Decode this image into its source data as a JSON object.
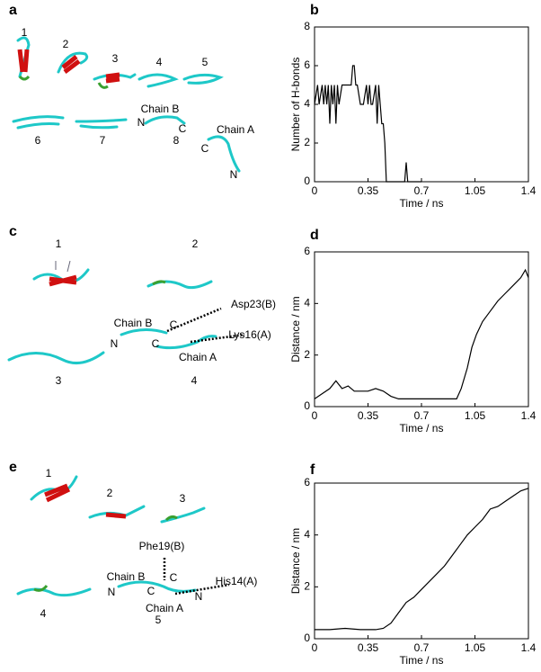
{
  "panel_letters": [
    "a",
    "b",
    "c",
    "d",
    "e",
    "f"
  ],
  "structure_labels": [
    "1",
    "2",
    "3",
    "4",
    "5",
    "6",
    "7",
    "8",
    "Chain B",
    "C",
    "C",
    "Chain A",
    "N",
    "N",
    "1",
    "2",
    "3",
    "4",
    "Chain B",
    "C",
    "C",
    "Chain A",
    "N",
    "Asp23(B)",
    "Lys16(A)",
    "1",
    "2",
    "3",
    "4",
    "5",
    "Phe19(B)",
    "Chain B",
    "C",
    "C",
    "N",
    "His14(A)",
    "N",
    "Chain A"
  ],
  "chart_data": [
    {
      "type": "line",
      "xlabel": "Time / ns",
      "ylabel": "Number of H-bonds",
      "color": "#000000",
      "x": [
        0,
        0.02,
        0.03,
        0.05,
        0.06,
        0.07,
        0.08,
        0.09,
        0.1,
        0.11,
        0.12,
        0.13,
        0.14,
        0.15,
        0.16,
        0.18,
        0.2,
        0.22,
        0.24,
        0.25,
        0.26,
        0.27,
        0.28,
        0.3,
        0.32,
        0.34,
        0.35,
        0.36,
        0.37,
        0.38,
        0.4,
        0.41,
        0.42,
        0.43,
        0.44,
        0.45,
        0.46,
        0.47,
        0.55,
        0.59,
        0.6,
        0.61,
        0.7
      ],
      "values": [
        4,
        5,
        4,
        5,
        4,
        5,
        4,
        5,
        3,
        5,
        4,
        5,
        3,
        5,
        4,
        5,
        5,
        5,
        5,
        6,
        6,
        5,
        5,
        4,
        4,
        5,
        4,
        5,
        4,
        4,
        5,
        3,
        5,
        4,
        3,
        3,
        2,
        0,
        0,
        0,
        1,
        0,
        0
      ],
      "xlim": [
        0,
        1.4
      ],
      "ylim": [
        0,
        8
      ],
      "xticks": [
        0,
        0.35,
        0.7,
        1.05,
        1.4
      ],
      "yticks": [
        0,
        2,
        4,
        6,
        8
      ]
    },
    {
      "type": "line",
      "xlabel": "Time / ns",
      "ylabel": "Distance / nm",
      "color": "#000000",
      "x": [
        0,
        0.05,
        0.1,
        0.14,
        0.18,
        0.22,
        0.26,
        0.3,
        0.35,
        0.4,
        0.45,
        0.5,
        0.55,
        0.6,
        0.65,
        0.7,
        0.75,
        0.8,
        0.85,
        0.9,
        0.93,
        0.96,
        1.0,
        1.03,
        1.06,
        1.1,
        1.15,
        1.2,
        1.25,
        1.3,
        1.35,
        1.38,
        1.4
      ],
      "values": [
        0.3,
        0.5,
        0.7,
        1.0,
        0.7,
        0.8,
        0.6,
        0.6,
        0.6,
        0.7,
        0.6,
        0.4,
        0.3,
        0.3,
        0.3,
        0.3,
        0.3,
        0.3,
        0.3,
        0.3,
        0.3,
        0.7,
        1.5,
        2.3,
        2.8,
        3.3,
        3.7,
        4.1,
        4.4,
        4.7,
        5.0,
        5.3,
        5.0
      ],
      "xlim": [
        0,
        1.4
      ],
      "ylim": [
        0,
        6
      ],
      "xticks": [
        0,
        0.35,
        0.7,
        1.05,
        1.4
      ],
      "yticks": [
        0,
        2,
        4,
        6
      ]
    },
    {
      "type": "line",
      "xlabel": "Time / ns",
      "ylabel": "Distance / nm",
      "color": "#000000",
      "x": [
        0,
        0.1,
        0.2,
        0.3,
        0.4,
        0.45,
        0.5,
        0.55,
        0.6,
        0.65,
        0.7,
        0.75,
        0.8,
        0.85,
        0.9,
        0.95,
        1.0,
        1.05,
        1.1,
        1.15,
        1.2,
        1.25,
        1.3,
        1.35,
        1.4
      ],
      "values": [
        0.35,
        0.35,
        0.4,
        0.35,
        0.35,
        0.4,
        0.6,
        1.0,
        1.4,
        1.6,
        1.9,
        2.2,
        2.5,
        2.8,
        3.2,
        3.6,
        4.0,
        4.3,
        4.6,
        5.0,
        5.1,
        5.3,
        5.5,
        5.7,
        5.8
      ],
      "xlim": [
        0,
        1.4
      ],
      "ylim": [
        0,
        6
      ],
      "xticks": [
        0,
        0.35,
        0.7,
        1.05,
        1.4
      ],
      "yticks": [
        0,
        2,
        4,
        6
      ]
    }
  ]
}
